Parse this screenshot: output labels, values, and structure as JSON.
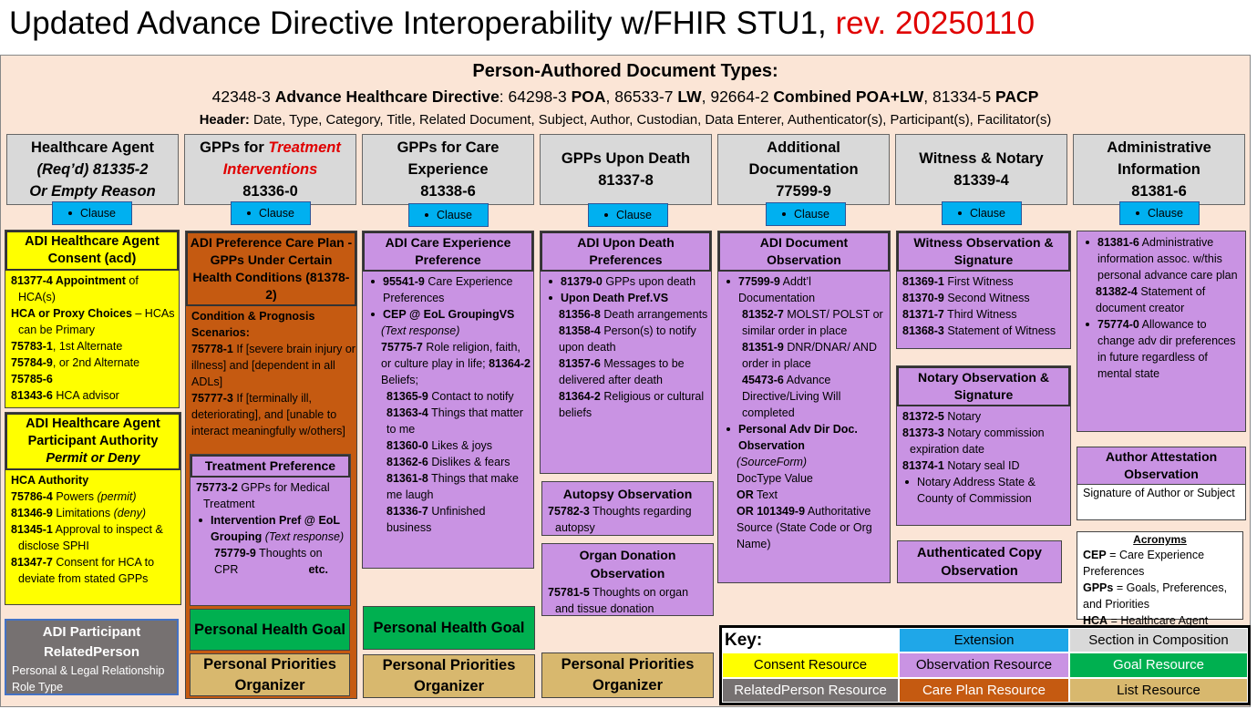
{
  "title": [
    {
      "t": "Updated Advance Directive Interoperability w/FHIR STU1, "
    },
    {
      "red": "rev. 20250110"
    }
  ],
  "banner": {
    "heading": "Person-Authored Document Types:",
    "types": [
      {
        "t": "42348-3 "
      },
      {
        "b": "Advance Healthcare Directive"
      },
      {
        "t": ": 64298-3 "
      },
      {
        "b": "POA"
      },
      {
        "t": ", 86533-7 "
      },
      {
        "b": "LW"
      },
      {
        "t": ", 92664-2 "
      },
      {
        "b": "Combined POA+LW"
      },
      {
        "t": ", 81334-5 "
      },
      {
        "b": "PACP"
      }
    ],
    "header": [
      {
        "b": "Header:"
      },
      {
        "t": " Date, Type, Category, Title, Related Document, Subject, Author, Custodian, Data Enterer, Authenticator(s), Participant(s), Facilitator(s)"
      }
    ]
  },
  "columns": [
    {
      "header": [
        [
          {
            "b": "Healthcare Agent"
          }
        ],
        [
          {
            "bi": "(Req’d) 81335-2"
          }
        ],
        [
          {
            "bi": "Or Empty Reason"
          }
        ]
      ],
      "clause": "Clause",
      "consent": {
        "title": [
          {
            "b": "ADI Healthcare Agent Consent (acd)"
          }
        ],
        "items": [
          [
            {
              "b": "81377-4 Appointment"
            },
            {
              "t": " of HCA(s)"
            }
          ],
          [
            {
              "b": "HCA or Proxy Choices"
            },
            {
              "t": " – HCAs can be Primary"
            }
          ],
          [
            {
              "b": "75783-1"
            },
            {
              "t": ", 1st Alternate"
            }
          ],
          [
            {
              "b": "75784-9"
            },
            {
              "t": ", or 2nd Alternate"
            }
          ],
          [
            {
              "b": "75785-6"
            }
          ],
          [
            {
              "b": "81343-6"
            },
            {
              "t": " HCA advisor"
            }
          ]
        ]
      },
      "authority": {
        "title": [
          {
            "b": "ADI Healthcare Agent Participant Authority "
          },
          {
            "bi": "Permit or Deny"
          }
        ],
        "items": [
          [
            {
              "b": "HCA Authority"
            }
          ],
          [
            {
              "b": "75786-4"
            },
            {
              "t": " Powers "
            },
            {
              "i": "(permit)"
            }
          ],
          [
            {
              "b": "81346-9"
            },
            {
              "t": " Limitations "
            },
            {
              "i": "(deny)"
            }
          ],
          [
            {
              "b": "81345-1"
            },
            {
              "t": " Approval to inspect & disclose SPHI"
            }
          ],
          [
            {
              "b": "81347-7"
            },
            {
              "t": " Consent for HCA to deviate from stated GPPs"
            }
          ]
        ]
      },
      "related": {
        "title": [
          {
            "b": "ADI Participant RelatedPerson"
          }
        ],
        "items": [
          [
            {
              "t": "Personal & Legal Relationship Role Type"
            }
          ]
        ]
      }
    },
    {
      "header": [
        [
          {
            "b": "GPPs for "
          },
          {
            "ri": "Treatment Interventions"
          }
        ],
        [
          {
            "b": "81336-0"
          }
        ]
      ],
      "clause": "Clause",
      "careplan": {
        "title": [
          {
            "b": "ADI Preference Care Plan - GPPs Under Certain Health Conditions (81378-2)"
          }
        ],
        "items": [
          [
            {
              "b": "Condition & Prognosis Scenarios:"
            }
          ],
          [
            {
              "b": "75778-1"
            },
            {
              "t": " If [severe brain injury or illness] and [dependent in all ADLs]"
            }
          ],
          [
            {
              "b": "75777-3"
            },
            {
              "t": " If [terminally ill, deteriorating], and [unable to interact meaningfully w/others]"
            }
          ]
        ]
      },
      "treatment": {
        "title": [
          {
            "b": "Treatment Preference"
          }
        ],
        "items": [
          [
            {
              "b": "75773-2"
            },
            {
              "t": " GPPs for Medical Treatment"
            }
          ],
          [
            {
              "b": "Intervention Pref @ EoL Grouping"
            },
            {
              "t": " "
            },
            {
              "i": "(Text response)"
            }
          ],
          [
            {
              "b": "75779-9"
            },
            {
              "t": " Thoughts on CPR"
            }
          ],
          [
            {
              "b": "etc."
            }
          ]
        ]
      },
      "goal": [
        {
          "b": "Personal Health Goal"
        }
      ],
      "organizer": [
        {
          "b": "Personal Priorities Organizer"
        }
      ]
    },
    {
      "header": [
        [
          {
            "b": "GPPs for Care Experience"
          }
        ],
        [
          {
            "b": "81338-6"
          }
        ]
      ],
      "clause": "Clause",
      "care": {
        "title": [
          {
            "b": "ADI Care Experience Preference"
          }
        ],
        "items": [
          [
            {
              "b": "95541-9"
            },
            {
              "t": " Care Experience Preferences"
            }
          ],
          [
            {
              "b": "CEP @ EoL GroupingVS"
            }
          ],
          [
            {
              "i": "(Text response)"
            }
          ],
          [
            {
              "b": "75775-7"
            },
            {
              "t": " Role religion, faith, or culture play in life; "
            },
            {
              "b": "81364-2"
            },
            {
              "t": " Beliefs;"
            }
          ],
          [
            {
              "b": "81365-9"
            },
            {
              "t": " Contact to notify"
            }
          ],
          [
            {
              "b": "81363-4"
            },
            {
              "t": " Things that matter to me"
            }
          ],
          [
            {
              "b": "81360-0"
            },
            {
              "t": " Likes & joys"
            }
          ],
          [
            {
              "b": "81362-6"
            },
            {
              "t": " Dislikes & fears"
            }
          ],
          [
            {
              "b": "81361-8"
            },
            {
              "t": " Things that make me laugh"
            }
          ],
          [
            {
              "b": "81336-7"
            },
            {
              "t": " Unfinished business"
            }
          ]
        ]
      },
      "goal": [
        {
          "b": "Personal Health Goal"
        }
      ],
      "organizer": [
        {
          "b": "Personal Priorities Organizer"
        }
      ]
    },
    {
      "header": [
        [
          {
            "b": "GPPs Upon Death"
          }
        ],
        [
          {
            "b": "81337-8"
          }
        ]
      ],
      "clause": "Clause",
      "death": {
        "title": [
          {
            "b": "ADI Upon Death Preferences"
          }
        ],
        "items": [
          [
            {
              "b": "81379-0"
            },
            {
              "t": " GPPs upon death"
            }
          ],
          [
            {
              "b": "Upon Death Pref.VS"
            }
          ],
          [
            {
              "b": "81356-8"
            },
            {
              "t": " Death arrangements"
            }
          ],
          [
            {
              "b": "81358-4"
            },
            {
              "t": " Person(s) to notify upon death"
            }
          ],
          [
            {
              "b": "81357-6"
            },
            {
              "t": " Messages to be delivered after death"
            }
          ],
          [
            {
              "b": "81364-2"
            },
            {
              "t": " Religious or cultural beliefs"
            }
          ]
        ]
      },
      "autopsy": {
        "title": [
          {
            "b": "Autopsy Observation"
          }
        ],
        "items": [
          [
            {
              "b": "75782-3"
            },
            {
              "t": "  Thoughts regarding autopsy"
            }
          ]
        ]
      },
      "organ": {
        "title": [
          {
            "b": "Organ Donation Observation"
          }
        ],
        "items": [
          [
            {
              "b": "75781-5"
            },
            {
              "t": " Thoughts on organ and tissue donation"
            }
          ]
        ]
      },
      "organizer": [
        {
          "b": "Personal Priorities Organizer"
        }
      ]
    },
    {
      "header": [
        [
          {
            "b": "Additional Documentation"
          }
        ],
        [
          {
            "b": "77599-9"
          }
        ]
      ],
      "clause": "Clause",
      "document": {
        "title": [
          {
            "b": "ADI Document Observation"
          }
        ],
        "items": [
          [
            {
              "b": "77599-9"
            },
            {
              "t": " Addt’l Documentation"
            }
          ],
          [
            {
              "b": "81352-7"
            },
            {
              "t": " MOLST/ POLST or similar order in place"
            }
          ],
          [
            {
              "b": "81351-9"
            },
            {
              "t": " DNR/DNAR/ AND order in place"
            }
          ],
          [
            {
              "b": "45473-6"
            },
            {
              "t": " Advance Directive/Living Will completed"
            }
          ],
          [
            {
              "b": "Personal Adv Dir Doc. Observation"
            }
          ],
          [
            {
              "i": "(SourceForm)"
            }
          ],
          [
            {
              "t": "DocType Value"
            }
          ],
          [
            {
              "b": "OR"
            },
            {
              "t": " Text"
            }
          ],
          [
            {
              "b": "OR 101349-9"
            },
            {
              "t": " Authoritative Source (State Code or Org Name)"
            }
          ]
        ]
      }
    },
    {
      "header": [
        [
          {
            "b": "Witness & Notary"
          }
        ],
        [
          {
            "b": "81339-4"
          }
        ]
      ],
      "clause": "Clause",
      "witness": {
        "title": [
          {
            "b": "Witness Observation & Signature"
          }
        ],
        "items": [
          [
            {
              "b": "81369-1"
            },
            {
              "t": " First Witness"
            }
          ],
          [
            {
              "b": "81370-9"
            },
            {
              "t": " Second Witness"
            }
          ],
          [
            {
              "b": "81371-7"
            },
            {
              "t": " Third Witness"
            }
          ],
          [
            {
              "b": "81368-3"
            },
            {
              "t": " Statement of Witness"
            }
          ]
        ]
      },
      "notary": {
        "title": [
          {
            "b": "Notary Observation & Signature"
          }
        ],
        "items": [
          [
            {
              "b": "81372-5"
            },
            {
              "t": " Notary"
            }
          ],
          [
            {
              "b": "81373-3"
            },
            {
              "t": " Notary commission expiration date"
            }
          ],
          [
            {
              "b": "81374-1"
            },
            {
              "t": " Notary seal ID"
            }
          ],
          [
            {
              "t": "Notary Address State & County of Commission"
            }
          ]
        ]
      },
      "authenticated": [
        {
          "b": "Authenticated Copy Observation"
        }
      ]
    },
    {
      "header": [
        [
          {
            "b": "Administrative Information"
          }
        ],
        [
          {
            "b": "81381-6"
          }
        ]
      ],
      "clause": "Clause",
      "admin": {
        "items": [
          [
            {
              "b": "81381-6"
            },
            {
              "t": " Administrative information assoc. w/this personal advance care plan"
            }
          ],
          [
            {
              "b": "81382-4"
            },
            {
              "t": "  Statement of document creator"
            }
          ],
          [
            {
              "b": "75774-0"
            },
            {
              "t": " Allowance to change adv dir preferences in future regardless of mental state"
            }
          ]
        ]
      },
      "attestation": {
        "title": [
          {
            "b": "Author Attestation Observation"
          }
        ],
        "items": [
          [
            {
              "t": "Signature of Author or Subject"
            }
          ]
        ]
      },
      "acronyms": {
        "title": [
          {
            "u": "Acronyms"
          }
        ],
        "items": [
          [
            {
              "b": "CEP"
            },
            {
              "t": " = Care Experience Preferences"
            }
          ],
          [
            {
              "b": "GPPs"
            },
            {
              "t": " = Goals, Preferences, and Priorities"
            }
          ],
          [
            {
              "b": "HCA"
            },
            {
              "t": " = Healthcare Agent"
            }
          ]
        ]
      }
    }
  ],
  "key": {
    "title": "Key:",
    "entries": [
      {
        "label": "Extension",
        "color": "#1fa7e8"
      },
      {
        "label": "Section in Composition",
        "color": "#d9d9d9"
      },
      {
        "label": "Consent Resource",
        "color": "#ffff00"
      },
      {
        "label": "Observation Resource",
        "color": "#c993e3"
      },
      {
        "label": "Goal Resource",
        "color": "#00b050"
      },
      {
        "label": "RelatedPerson Resource",
        "color": "#767171"
      },
      {
        "label": "Care Plan Resource",
        "color": "#c55a11"
      },
      {
        "label": "List Resource",
        "color": "#d8b86e"
      }
    ]
  }
}
